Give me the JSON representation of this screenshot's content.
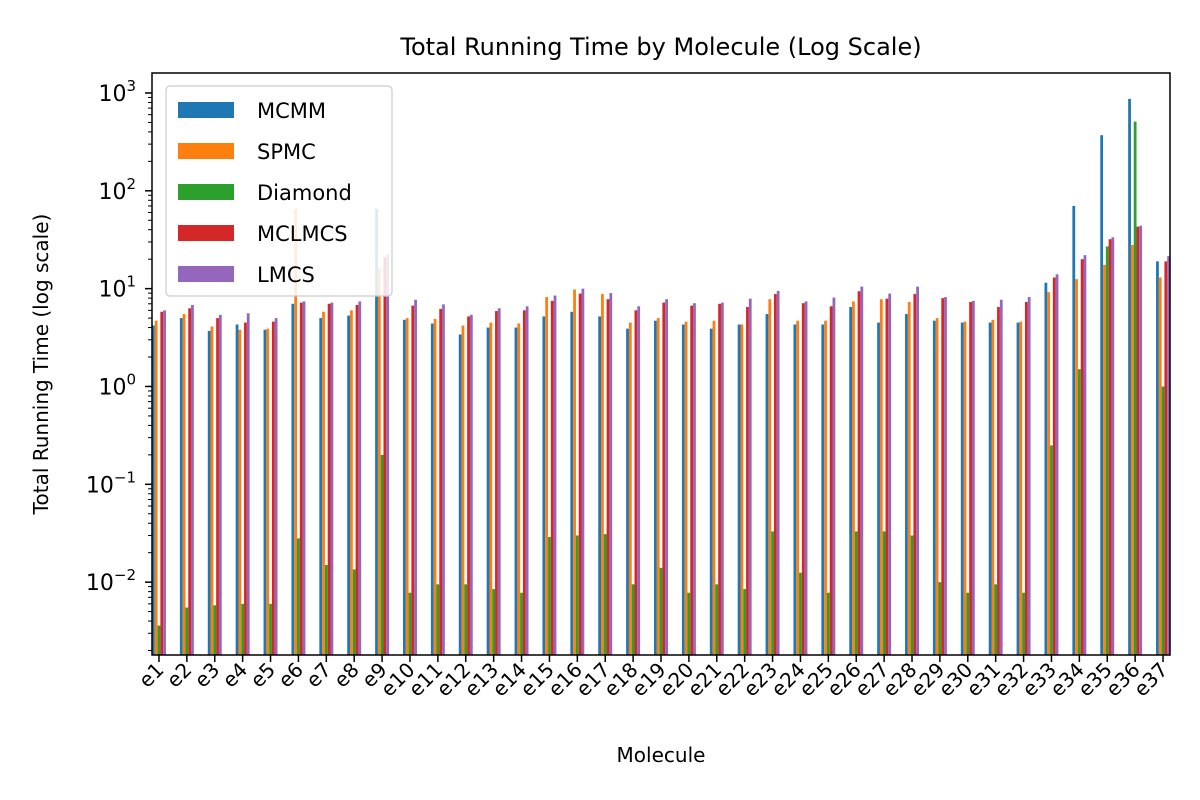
{
  "chart_data": {
    "type": "bar",
    "title": "Total Running Time by Molecule (Log Scale)",
    "xlabel": "Molecule",
    "ylabel": "Total Running Time (log scale)",
    "yscale": "log",
    "ylim": [
      0.0018,
      1600
    ],
    "grid": false,
    "legend_position": "top-left",
    "y_ticks": [
      {
        "value": 0.01,
        "base": "10",
        "exp": "−2"
      },
      {
        "value": 0.1,
        "base": "10",
        "exp": "−1"
      },
      {
        "value": 1,
        "base": "10",
        "exp": "0"
      },
      {
        "value": 10,
        "base": "10",
        "exp": "1"
      },
      {
        "value": 100,
        "base": "10",
        "exp": "2"
      },
      {
        "value": 1000,
        "base": "10",
        "exp": "3"
      }
    ],
    "categories": [
      "e1",
      "e2",
      "e3",
      "e4",
      "e5",
      "e6",
      "e7",
      "e8",
      "e9",
      "e10",
      "e11",
      "e12",
      "e13",
      "e14",
      "e15",
      "e16",
      "e17",
      "e18",
      "e19",
      "e20",
      "e21",
      "e22",
      "e23",
      "e24",
      "e25",
      "e26",
      "e27",
      "e28",
      "e29",
      "e30",
      "e31",
      "e32",
      "e33",
      "e34",
      "e35",
      "e36",
      "e37"
    ],
    "series": [
      {
        "name": "MCMM",
        "color": "#1f77b4",
        "values": [
          4.2,
          5.0,
          3.7,
          4.3,
          3.8,
          7.0,
          5.0,
          5.3,
          65,
          4.8,
          4.4,
          3.4,
          4.0,
          4.0,
          5.2,
          5.8,
          5.2,
          3.9,
          4.7,
          4.3,
          3.9,
          4.3,
          5.5,
          4.3,
          4.3,
          6.5,
          4.5,
          5.5,
          4.7,
          4.5,
          4.5,
          4.5,
          11.5,
          70,
          370,
          870,
          19
        ]
      },
      {
        "name": "SPMC",
        "color": "#ff7f0e",
        "values": [
          4.7,
          5.5,
          4.1,
          3.8,
          3.9,
          65,
          5.8,
          6.0,
          16,
          5.0,
          4.9,
          4.2,
          4.5,
          4.4,
          8.2,
          9.8,
          8.8,
          4.5,
          5.0,
          4.6,
          4.7,
          4.3,
          7.8,
          4.7,
          4.7,
          7.4,
          7.8,
          7.3,
          5.0,
          4.6,
          4.8,
          4.6,
          9.2,
          12.5,
          17.5,
          28,
          13
        ]
      },
      {
        "name": "Diamond",
        "color": "#2ca02c",
        "values": [
          0.0036,
          0.0055,
          0.0058,
          0.006,
          0.006,
          0.028,
          0.015,
          0.0135,
          0.2,
          0.0078,
          0.0095,
          0.0095,
          0.0085,
          0.0078,
          0.029,
          0.03,
          0.031,
          0.0095,
          0.014,
          0.0078,
          0.0095,
          0.0085,
          0.033,
          0.0125,
          0.0078,
          0.033,
          0.033,
          0.03,
          0.01,
          0.0078,
          0.0095,
          0.0078,
          0.25,
          1.5,
          27,
          510,
          1.0
        ]
      },
      {
        "name": "MCLMCS",
        "color": "#d62728",
        "values": [
          5.8,
          6.3,
          5.0,
          4.5,
          4.6,
          7.2,
          7.0,
          6.8,
          21,
          6.7,
          6.2,
          5.2,
          5.9,
          6.0,
          7.5,
          8.9,
          7.8,
          6.0,
          7.2,
          6.7,
          7.0,
          6.5,
          8.8,
          7.1,
          6.6,
          9.4,
          7.9,
          8.8,
          8.0,
          7.3,
          6.5,
          7.3,
          13,
          20,
          32,
          43,
          19
        ]
      },
      {
        "name": "LMCS",
        "color": "#9467bd",
        "values": [
          6.0,
          6.8,
          5.4,
          5.6,
          5.0,
          7.4,
          7.2,
          7.4,
          22.5,
          7.7,
          6.9,
          5.4,
          6.3,
          6.6,
          8.5,
          10.0,
          9.0,
          6.6,
          7.8,
          7.1,
          7.2,
          7.9,
          9.5,
          7.4,
          8.1,
          10.5,
          8.9,
          10.5,
          8.2,
          7.5,
          7.7,
          8.2,
          14,
          22,
          33.5,
          44,
          21.5
        ]
      }
    ]
  }
}
